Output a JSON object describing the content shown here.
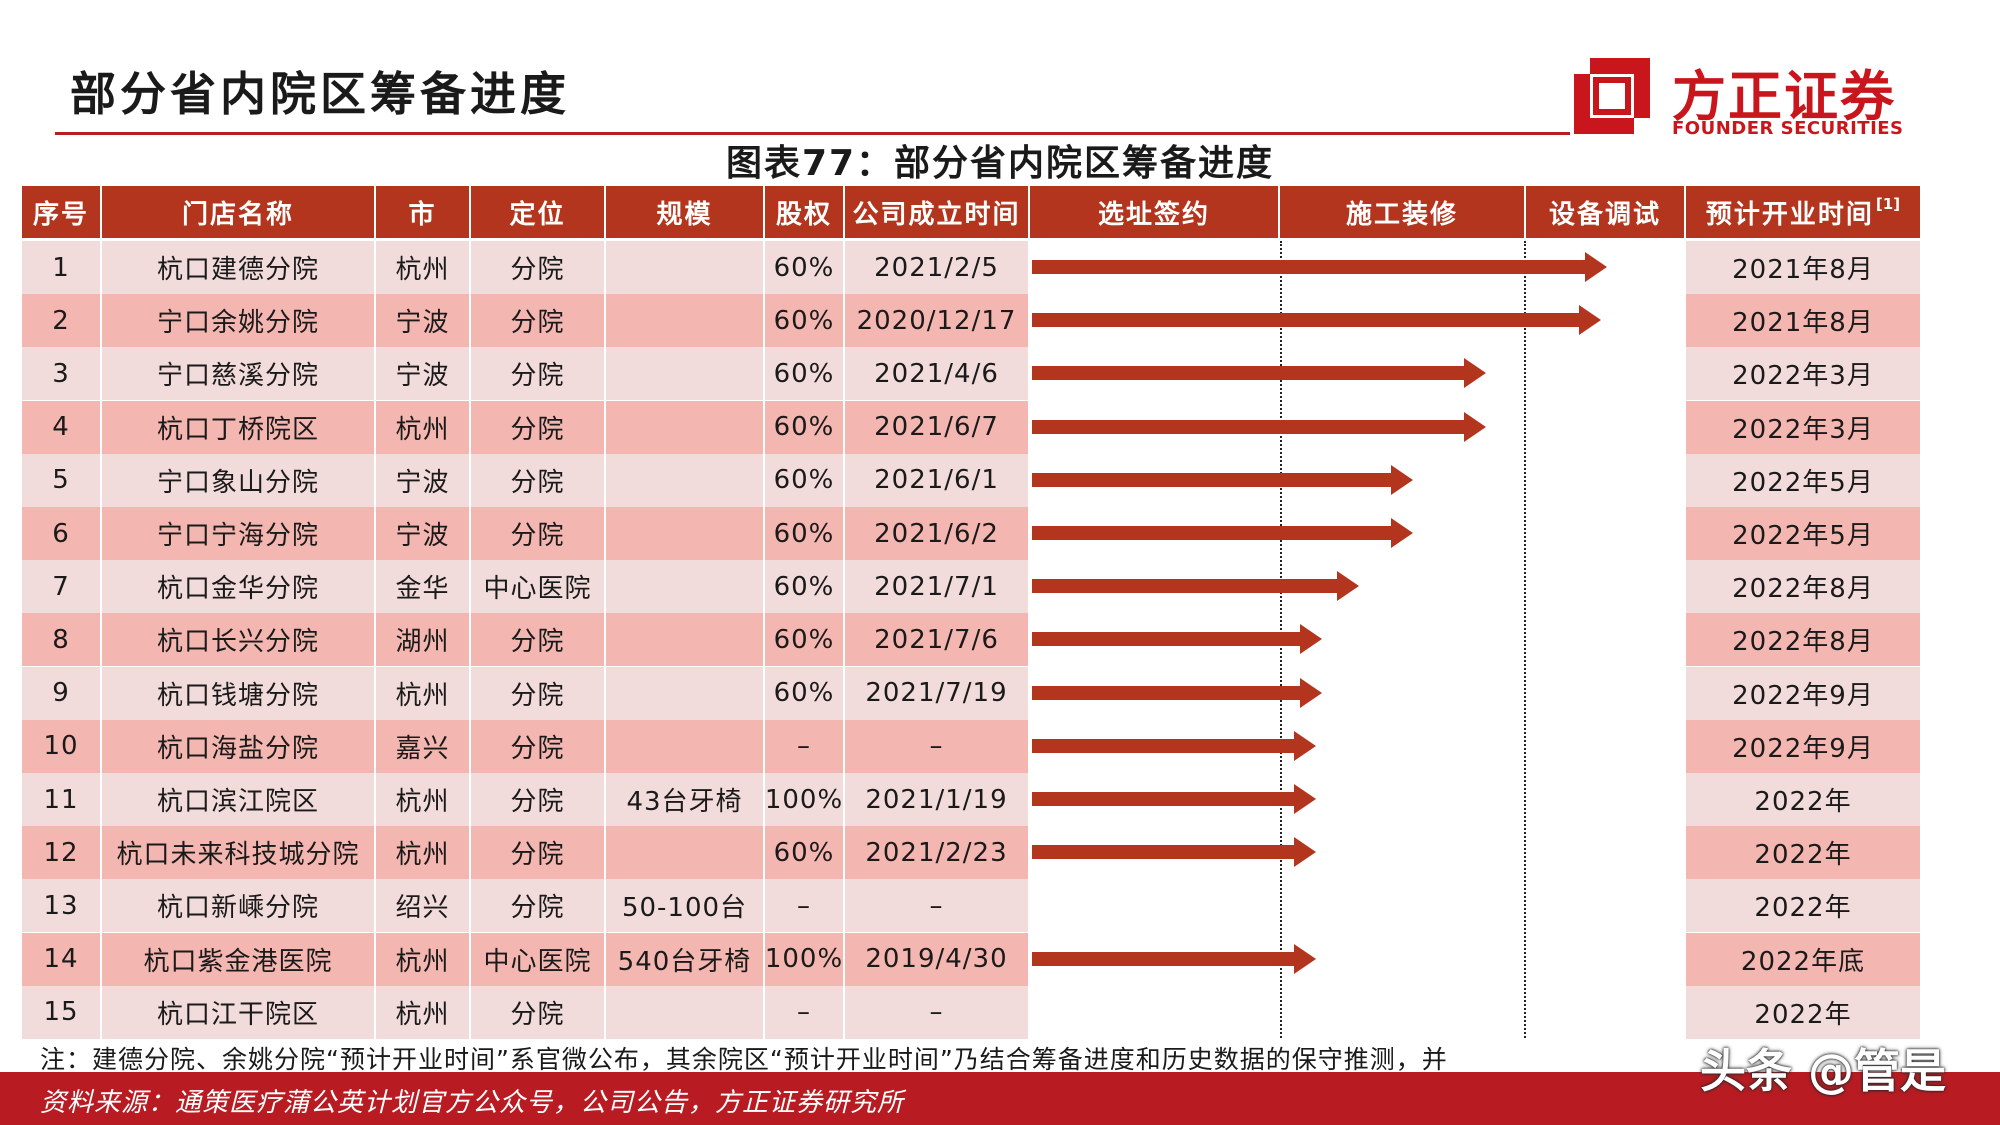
{
  "header": {
    "page_title": "部分省内院区筹备进度",
    "logo_cn": "方正证券",
    "logo_en": "FOUNDER SECURITIES"
  },
  "chart_title": "图表77：部分省内院区筹备进度",
  "columns": [
    "序号",
    "门店名称",
    "市",
    "定位",
    "规模",
    "股权",
    "公司成立时间",
    "选址签约",
    "施工装修",
    "设备调试",
    "预计开业时间"
  ],
  "footnote_mark": "[1]",
  "rows": [
    {
      "no": "1",
      "name": "杭口建德分院",
      "city": "杭州",
      "pos": "分院",
      "scale": "",
      "equity": "60%",
      "est": "2021/2/5",
      "open": "2021年8月",
      "progress": 0.95
    },
    {
      "no": "2",
      "name": "宁口余姚分院",
      "city": "宁波",
      "pos": "分院",
      "scale": "",
      "equity": "60%",
      "est": "2020/12/17",
      "open": "2021年8月",
      "progress": 0.94
    },
    {
      "no": "3",
      "name": "宁口慈溪分院",
      "city": "宁波",
      "pos": "分院",
      "scale": "",
      "equity": "60%",
      "est": "2021/4/6",
      "open": "2022年3月",
      "progress": 0.75
    },
    {
      "no": "4",
      "name": "杭口丁桥院区",
      "city": "杭州",
      "pos": "分院",
      "scale": "",
      "equity": "60%",
      "est": "2021/6/7",
      "open": "2022年3月",
      "progress": 0.75
    },
    {
      "no": "5",
      "name": "宁口象山分院",
      "city": "宁波",
      "pos": "分院",
      "scale": "",
      "equity": "60%",
      "est": "2021/6/1",
      "open": "2022年5月",
      "progress": 0.63
    },
    {
      "no": "6",
      "name": "宁口宁海分院",
      "city": "宁波",
      "pos": "分院",
      "scale": "",
      "equity": "60%",
      "est": "2021/6/2",
      "open": "2022年5月",
      "progress": 0.63
    },
    {
      "no": "7",
      "name": "杭口金华分院",
      "city": "金华",
      "pos": "中心医院",
      "scale": "",
      "equity": "60%",
      "est": "2021/7/1",
      "open": "2022年8月",
      "progress": 0.54
    },
    {
      "no": "8",
      "name": "杭口长兴分院",
      "city": "湖州",
      "pos": "分院",
      "scale": "",
      "equity": "60%",
      "est": "2021/7/6",
      "open": "2022年8月",
      "progress": 0.48
    },
    {
      "no": "9",
      "name": "杭口钱塘分院",
      "city": "杭州",
      "pos": "分院",
      "scale": "",
      "equity": "60%",
      "est": "2021/7/19",
      "open": "2022年9月",
      "progress": 0.48
    },
    {
      "no": "10",
      "name": "杭口海盐分院",
      "city": "嘉兴",
      "pos": "分院",
      "scale": "",
      "equity": "–",
      "est": "–",
      "open": "2022年9月",
      "progress": 0.47
    },
    {
      "no": "11",
      "name": "杭口滨江院区",
      "city": "杭州",
      "pos": "分院",
      "scale": "43台牙椅",
      "equity": "100%",
      "est": "2021/1/19",
      "open": "2022年",
      "progress": 0.47
    },
    {
      "no": "12",
      "name": "杭口未来科技城分院",
      "city": "杭州",
      "pos": "分院",
      "scale": "",
      "equity": "60%",
      "est": "2021/2/23",
      "open": "2022年",
      "progress": 0.47
    },
    {
      "no": "13",
      "name": "杭口新嵊分院",
      "city": "绍兴",
      "pos": "分院",
      "scale": "50-100台",
      "equity": "–",
      "est": "–",
      "open": "2022年",
      "progress": 0
    },
    {
      "no": "14",
      "name": "杭口紫金港医院",
      "city": "杭州",
      "pos": "中心医院",
      "scale": "540台牙椅",
      "equity": "100%",
      "est": "2019/4/30",
      "open": "2022年底",
      "progress": 0.47
    },
    {
      "no": "15",
      "name": "杭口江干院区",
      "city": "杭州",
      "pos": "分院",
      "scale": "",
      "equity": "–",
      "est": "–",
      "open": "2022年",
      "progress": 0
    }
  ],
  "note": "注：建德分院、余姚分院“预计开业时间”系官微公布，其余院区“预计开业时间”乃结合筹备进度和历史数据的保守推测，并",
  "source": "资料来源：通策医疗蒲公英计划官方公众号，公司公告，方正证券研究所",
  "watermark": "头条 @管是"
}
